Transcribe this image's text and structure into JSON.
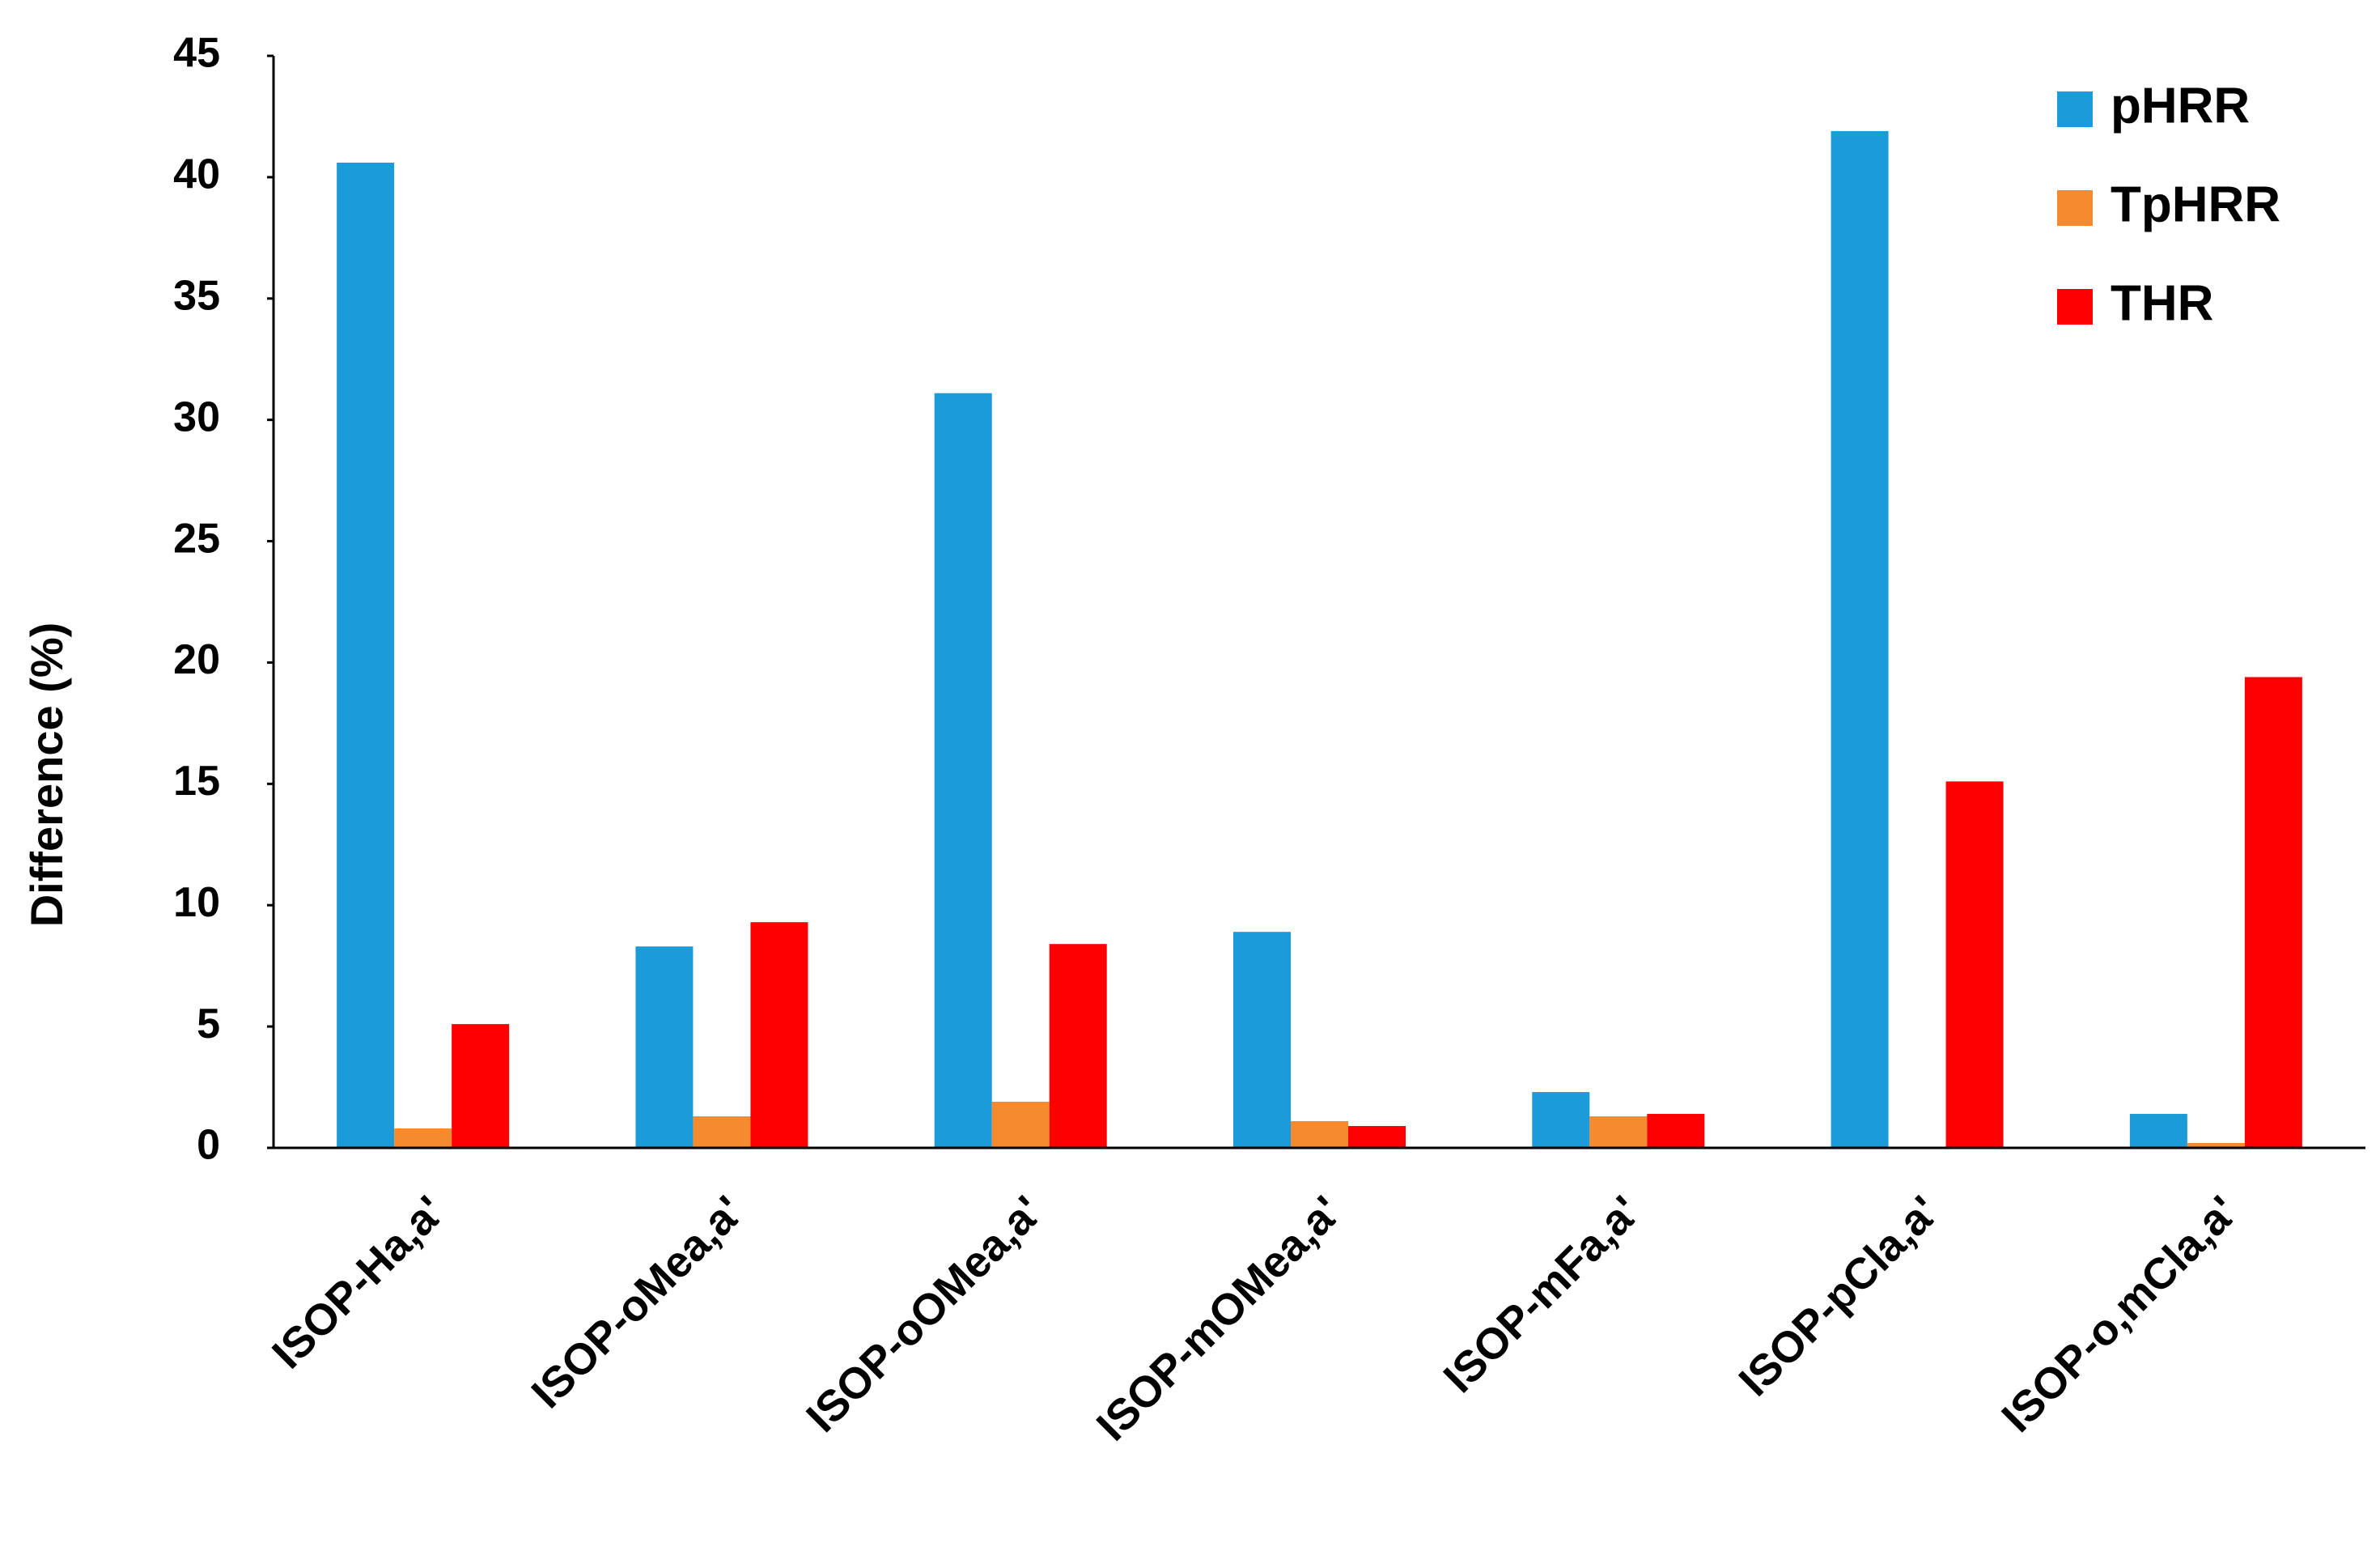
{
  "chart_data": {
    "type": "bar",
    "y_label": "Difference (%)",
    "categories": [
      "ISOP-Ha,a'",
      "ISOP-oMea,a'",
      "ISOP-oOMea,a'",
      "ISOP-mOMea,a'",
      "ISOP-mFa,a'",
      "ISOP-pCla,a'",
      "ISOP-o,mCla,a'"
    ],
    "series": [
      {
        "name": "pHRR",
        "color": "#1b9bd7",
        "values": [
          40.6,
          8.3,
          31.1,
          8.9,
          2.3,
          41.9,
          1.4
        ]
      },
      {
        "name": "TpHRR",
        "color": "#f58a2e",
        "values": [
          0.8,
          1.3,
          1.9,
          1.1,
          1.3,
          0,
          0.2
        ]
      },
      {
        "name": "THR",
        "color": "#ff0000",
        "values": [
          5.1,
          9.3,
          8.4,
          0.9,
          1.4,
          15.1,
          19.4
        ]
      }
    ],
    "ylim": [
      0,
      45
    ],
    "yticks": [
      0,
      5,
      10,
      15,
      20,
      25,
      30,
      35,
      40,
      45
    ],
    "grid": false,
    "legend": "upper right"
  }
}
